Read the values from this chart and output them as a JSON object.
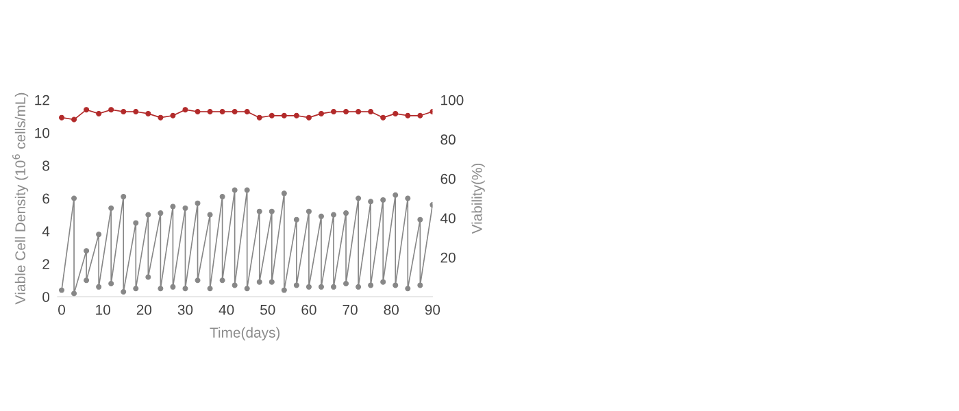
{
  "chart_data": {
    "type": "line",
    "xlabel": "Time(days)",
    "ylabel": "Viable Cell Density (10$^{6}$ cells/mL)",
    "y2label": "Viability(%)",
    "xlim": [
      -1,
      90
    ],
    "xticks": [
      0,
      10,
      20,
      30,
      40,
      50,
      60,
      70,
      80,
      90
    ],
    "ylim": [
      0,
      12
    ],
    "yticks": [
      0,
      2,
      4,
      6,
      8,
      10,
      12
    ],
    "y2lim": [
      0,
      100
    ],
    "y2ticks": [
      20,
      40,
      60,
      80,
      100
    ],
    "grid": false,
    "marker": "circle",
    "line_style": "solid",
    "series": [
      {
        "color": "#878787",
        "x": [
          0,
          3,
          3,
          6,
          6,
          9,
          9,
          12,
          12,
          15,
          15,
          18,
          18,
          21,
          21,
          24,
          24,
          27,
          27,
          30,
          30,
          33,
          33,
          36,
          36,
          39,
          39,
          42,
          42,
          45,
          45,
          48,
          48,
          51,
          51,
          54,
          54,
          57,
          57,
          60,
          60,
          63,
          63,
          66,
          66,
          69,
          69,
          72,
          72,
          75,
          75,
          78,
          78,
          81,
          81,
          84,
          84,
          87,
          87,
          90
        ],
        "values": [
          0.4,
          6.0,
          0.2,
          2.8,
          1.0,
          3.8,
          0.6,
          5.4,
          0.8,
          6.1,
          0.3,
          4.5,
          0.5,
          5.0,
          1.2,
          5.1,
          0.5,
          5.5,
          0.6,
          5.4,
          0.5,
          5.7,
          1.0,
          5.0,
          0.5,
          6.1,
          1.0,
          6.5,
          0.7,
          6.5,
          0.5,
          5.2,
          0.9,
          5.2,
          0.9,
          6.3,
          0.4,
          4.7,
          0.7,
          5.2,
          0.6,
          4.9,
          0.6,
          5.0,
          0.6,
          5.1,
          0.8,
          6.0,
          0.6,
          5.8,
          0.7,
          5.9,
          0.9,
          6.2,
          0.7,
          6.0,
          0.5,
          4.7,
          0.7,
          5.6
        ]
      },
      {
        "color": "#b22a2a",
        "axis": "y2",
        "x": [
          0,
          3,
          6,
          9,
          12,
          15,
          18,
          21,
          24,
          27,
          30,
          33,
          36,
          39,
          42,
          45,
          48,
          51,
          54,
          57,
          60,
          63,
          66,
          69,
          72,
          75,
          78,
          81,
          84,
          87,
          90
        ],
        "values": [
          91,
          90,
          95,
          93,
          95,
          94,
          94,
          93,
          91,
          92,
          95,
          94,
          94,
          94,
          94,
          94,
          91,
          92,
          92,
          92,
          91,
          93,
          94,
          94,
          94,
          94,
          91,
          93,
          92,
          92,
          94
        ]
      }
    ]
  }
}
